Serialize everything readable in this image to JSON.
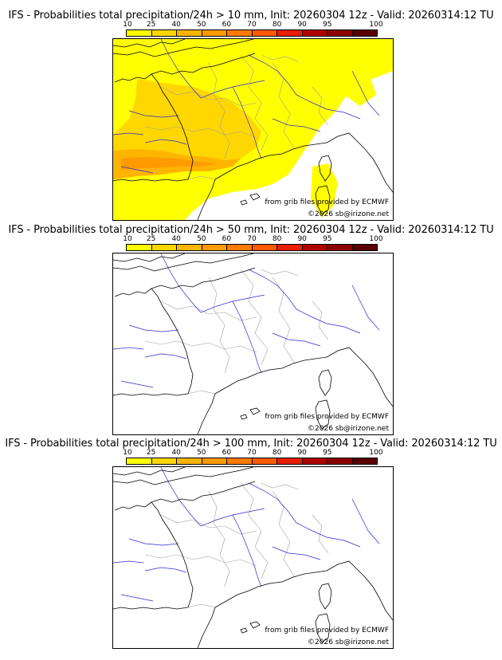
{
  "colors": {
    "scale": [
      "#ffff00",
      "#ffd700",
      "#ffb400",
      "#ff9a00",
      "#ff7b00",
      "#ff5a00",
      "#e81e00",
      "#b00000",
      "#8b0000",
      "#5a0000"
    ],
    "coast": "#000000",
    "rivers": "#2b2bd6",
    "borders": "#a0a0a0"
  },
  "colorbar": {
    "labels": [
      "10",
      "25",
      "40",
      "50",
      "60",
      "70",
      "80",
      "90",
      "95",
      "100"
    ]
  },
  "panels": [
    {
      "title": "IFS - Probabilities total precipitation/24h > 10 mm, Init: 20260304 12z - Valid: 20260314:12 TU",
      "credit_source": "from grib files provided by ECMWF",
      "credit_site": "©2026 sb@irizone.net",
      "precip_coverage": "wide"
    },
    {
      "title": "IFS - Probabilities total precipitation/24h > 50 mm, Init: 20260304 12z - Valid: 20260314:12 TU",
      "credit_source": "from grib files provided by ECMWF",
      "credit_site": "©2026 sb@irizone.net",
      "precip_coverage": "none"
    },
    {
      "title": "IFS - Probabilities total precipitation/24h > 100 mm, Init: 20260304 12z - Valid: 20260314:12 TU",
      "credit_source": "from grib files provided by ECMWF",
      "credit_site": "©2026 sb@irizone.net",
      "precip_coverage": "none"
    }
  ]
}
